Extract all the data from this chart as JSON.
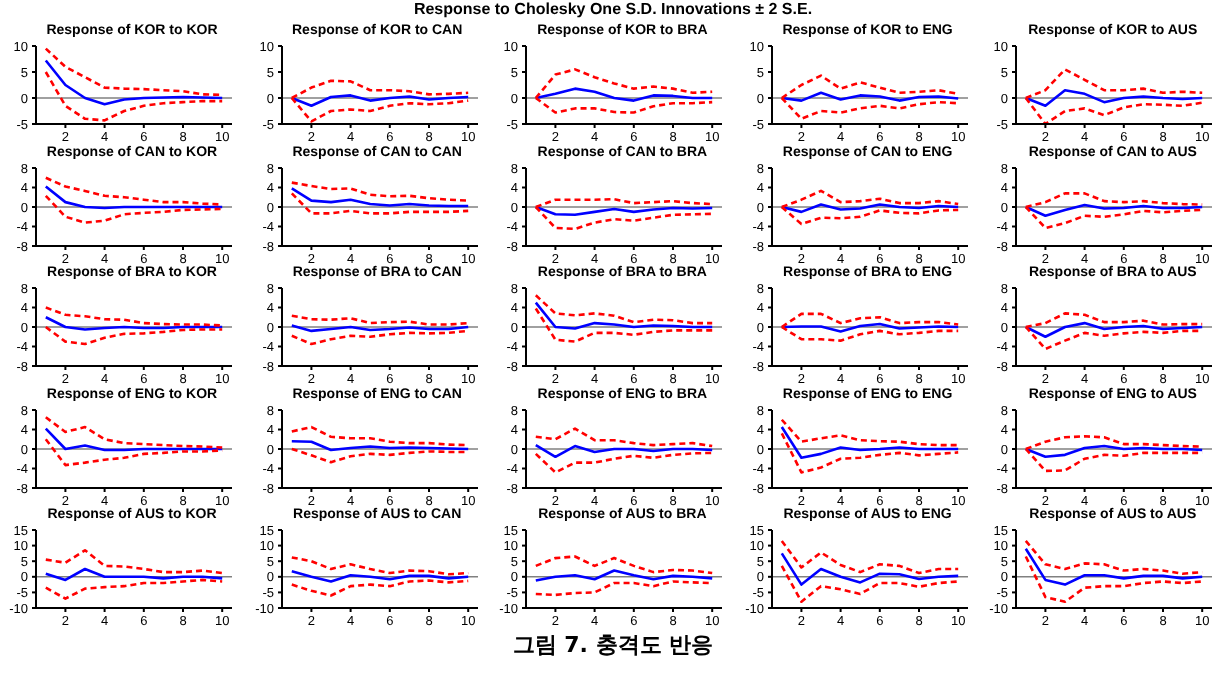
{
  "chart_data": [
    {
      "type": "other",
      "title": "Response to Cholesky One S.D. Innovations ± 2 S.E.",
      "annotations": [
        "그림 7. 충격도 반응"
      ]
    },
    {
      "type": "line",
      "title": "Response of KOR to KOR",
      "x": [
        1,
        2,
        3,
        4,
        5,
        6,
        7,
        8,
        9,
        10
      ],
      "xlim": [
        0.5,
        10.5
      ],
      "xticks": [
        2,
        4,
        6,
        8,
        10
      ],
      "ylim": [
        -5,
        10
      ],
      "yticks": [
        -5,
        0,
        5,
        10
      ],
      "ref_lines": [
        {
          "axis": "y",
          "value": 0,
          "color": "#808080"
        }
      ],
      "series": [
        {
          "color": "#0000ff",
          "values": [
            7.2,
            2.5,
            0,
            -1.2,
            -0.3,
            0,
            0.1,
            0.2,
            0.1,
            0
          ]
        },
        {
          "color": "#ff0000",
          "line_style": "dashed",
          "values": [
            9.5,
            6,
            4,
            2,
            1.8,
            1.7,
            1.5,
            1.3,
            0.7,
            0.6
          ]
        },
        {
          "color": "#ff0000",
          "line_style": "dashed",
          "values": [
            5,
            -1.5,
            -4,
            -4.3,
            -2.5,
            -1.5,
            -1,
            -0.8,
            -0.6,
            -0.6
          ]
        }
      ]
    },
    {
      "type": "line",
      "title": "Response of KOR to CAN",
      "x": [
        1,
        2,
        3,
        4,
        5,
        6,
        7,
        8,
        9,
        10
      ],
      "xlim": [
        0.5,
        10.5
      ],
      "xticks": [
        2,
        4,
        6,
        8,
        10
      ],
      "ylim": [
        -5,
        10
      ],
      "yticks": [
        -5,
        0,
        5,
        10
      ],
      "ref_lines": [
        {
          "axis": "y",
          "value": 0,
          "color": "#808080"
        }
      ],
      "series": [
        {
          "color": "#0000ff",
          "values": [
            0,
            -1.5,
            0.2,
            0.5,
            -0.5,
            0,
            0.3,
            -0.3,
            0,
            0.2
          ]
        },
        {
          "color": "#ff0000",
          "line_style": "dashed",
          "values": [
            0,
            2,
            3.3,
            3.2,
            1.5,
            1.5,
            1.3,
            0.7,
            0.8,
            1
          ]
        },
        {
          "color": "#ff0000",
          "line_style": "dashed",
          "values": [
            0,
            -4.5,
            -2.5,
            -2.2,
            -2.5,
            -1.5,
            -1,
            -1.2,
            -1,
            -0.5
          ]
        }
      ]
    },
    {
      "type": "line",
      "title": "Response of KOR to BRA",
      "x": [
        1,
        2,
        3,
        4,
        5,
        6,
        7,
        8,
        9,
        10
      ],
      "xlim": [
        0.5,
        10.5
      ],
      "xticks": [
        2,
        4,
        6,
        8,
        10
      ],
      "ylim": [
        -5,
        10
      ],
      "yticks": [
        -5,
        0,
        5,
        10
      ],
      "ref_lines": [
        {
          "axis": "y",
          "value": 0,
          "color": "#808080"
        }
      ],
      "series": [
        {
          "color": "#0000ff",
          "values": [
            0,
            0.8,
            1.8,
            1.2,
            0,
            -0.5,
            0.5,
            0.4,
            0,
            0
          ]
        },
        {
          "color": "#ff0000",
          "line_style": "dashed",
          "values": [
            0,
            4.5,
            5.5,
            4,
            2.8,
            1.8,
            2.2,
            1.8,
            1,
            1.2
          ]
        },
        {
          "color": "#ff0000",
          "line_style": "dashed",
          "values": [
            0,
            -2.8,
            -2,
            -2,
            -2.7,
            -2.8,
            -1.6,
            -1,
            -1,
            -0.8
          ]
        }
      ]
    },
    {
      "type": "line",
      "title": "Response of KOR to ENG",
      "x": [
        1,
        2,
        3,
        4,
        5,
        6,
        7,
        8,
        9,
        10
      ],
      "xlim": [
        0.5,
        10.5
      ],
      "xticks": [
        2,
        4,
        6,
        8,
        10
      ],
      "ylim": [
        -5,
        10
      ],
      "yticks": [
        -5,
        0,
        5,
        10
      ],
      "ref_lines": [
        {
          "axis": "y",
          "value": 0,
          "color": "#808080"
        }
      ],
      "series": [
        {
          "color": "#0000ff",
          "values": [
            0,
            -0.5,
            1,
            -0.3,
            0.5,
            0.3,
            -0.5,
            0.2,
            0.3,
            -0.1
          ]
        },
        {
          "color": "#ff0000",
          "line_style": "dashed",
          "values": [
            0,
            2.5,
            4.3,
            1.8,
            3,
            2,
            1,
            1.2,
            1.5,
            0.8
          ]
        },
        {
          "color": "#ff0000",
          "line_style": "dashed",
          "values": [
            0,
            -4,
            -2.5,
            -2.8,
            -2,
            -1.5,
            -2,
            -1.2,
            -0.8,
            -1
          ]
        }
      ]
    },
    {
      "type": "line",
      "title": "Response of KOR to AUS",
      "x": [
        1,
        2,
        3,
        4,
        5,
        6,
        7,
        8,
        9,
        10
      ],
      "xlim": [
        0.5,
        10.5
      ],
      "xticks": [
        2,
        4,
        6,
        8,
        10
      ],
      "ylim": [
        -5,
        10
      ],
      "yticks": [
        -5,
        0,
        5,
        10
      ],
      "ref_lines": [
        {
          "axis": "y",
          "value": 0,
          "color": "#808080"
        }
      ],
      "series": [
        {
          "color": "#0000ff",
          "values": [
            0,
            -1.5,
            1.5,
            0.8,
            -0.8,
            0,
            0.3,
            0,
            -0.2,
            0
          ]
        },
        {
          "color": "#ff0000",
          "line_style": "dashed",
          "values": [
            0,
            1.5,
            5.5,
            3.5,
            1.5,
            1.5,
            1.8,
            1,
            1.2,
            1
          ]
        },
        {
          "color": "#ff0000",
          "line_style": "dashed",
          "values": [
            0,
            -5,
            -2.5,
            -2,
            -3.3,
            -1.8,
            -1.2,
            -1.3,
            -1.5,
            -0.9
          ]
        }
      ]
    },
    {
      "type": "line",
      "title": "Response of CAN to KOR",
      "x": [
        1,
        2,
        3,
        4,
        5,
        6,
        7,
        8,
        9,
        10
      ],
      "xlim": [
        0.5,
        10.5
      ],
      "xticks": [
        2,
        4,
        6,
        8,
        10
      ],
      "ylim": [
        -8,
        8
      ],
      "yticks": [
        -8,
        -4,
        0,
        4,
        8
      ],
      "ref_lines": [
        {
          "axis": "y",
          "value": 0,
          "color": "#808080"
        }
      ],
      "series": [
        {
          "color": "#0000ff",
          "values": [
            4.2,
            1,
            0,
            -0.2,
            0,
            0,
            0,
            0,
            0,
            0
          ]
        },
        {
          "color": "#ff0000",
          "line_style": "dashed",
          "values": [
            6,
            4.2,
            3.3,
            2.3,
            2,
            1.5,
            1,
            1,
            0.7,
            0.5
          ]
        },
        {
          "color": "#ff0000",
          "line_style": "dashed",
          "values": [
            2.3,
            -2,
            -3.2,
            -2.8,
            -1.5,
            -1.2,
            -1,
            -0.6,
            -0.5,
            -0.4
          ]
        }
      ]
    },
    {
      "type": "line",
      "title": "Response of CAN to CAN",
      "x": [
        1,
        2,
        3,
        4,
        5,
        6,
        7,
        8,
        9,
        10
      ],
      "xlim": [
        0.5,
        10.5
      ],
      "xticks": [
        2,
        4,
        6,
        8,
        10
      ],
      "ylim": [
        -8,
        8
      ],
      "yticks": [
        -8,
        -4,
        0,
        4,
        8
      ],
      "ref_lines": [
        {
          "axis": "y",
          "value": 0,
          "color": "#808080"
        }
      ],
      "series": [
        {
          "color": "#0000ff",
          "values": [
            3.8,
            1.3,
            1,
            1.5,
            0.6,
            0.3,
            0.6,
            0.3,
            0.2,
            0.2
          ]
        },
        {
          "color": "#ff0000",
          "line_style": "dashed",
          "values": [
            5,
            4.3,
            3.7,
            3.8,
            2.5,
            2.2,
            2.3,
            1.8,
            1.5,
            1.3
          ]
        },
        {
          "color": "#ff0000",
          "line_style": "dashed",
          "values": [
            2.8,
            -1.3,
            -1.3,
            -0.8,
            -1.3,
            -1.3,
            -1,
            -1,
            -1,
            -0.8
          ]
        }
      ]
    },
    {
      "type": "line",
      "title": "Response of CAN to BRA",
      "x": [
        1,
        2,
        3,
        4,
        5,
        6,
        7,
        8,
        9,
        10
      ],
      "xlim": [
        0.5,
        10.5
      ],
      "xticks": [
        2,
        4,
        6,
        8,
        10
      ],
      "ylim": [
        -8,
        8
      ],
      "yticks": [
        -8,
        -4,
        0,
        4,
        8
      ],
      "ref_lines": [
        {
          "axis": "y",
          "value": 0,
          "color": "#808080"
        }
      ],
      "series": [
        {
          "color": "#0000ff",
          "values": [
            0,
            -1.5,
            -1.6,
            -1,
            -0.4,
            -1,
            -0.5,
            -0.2,
            -0.3,
            -0.2
          ]
        },
        {
          "color": "#ff0000",
          "line_style": "dashed",
          "values": [
            0,
            1.5,
            1.5,
            1.5,
            1.6,
            0.8,
            1,
            1.2,
            0.8,
            0.6
          ]
        },
        {
          "color": "#ff0000",
          "line_style": "dashed",
          "values": [
            0,
            -4.3,
            -4.5,
            -3.2,
            -2.5,
            -2.8,
            -2.2,
            -1.6,
            -1.5,
            -1.4
          ]
        }
      ]
    },
    {
      "type": "line",
      "title": "Response of CAN to ENG",
      "x": [
        1,
        2,
        3,
        4,
        5,
        6,
        7,
        8,
        9,
        10
      ],
      "xlim": [
        0.5,
        10.5
      ],
      "xticks": [
        2,
        4,
        6,
        8,
        10
      ],
      "ylim": [
        -8,
        8
      ],
      "yticks": [
        -8,
        -4,
        0,
        4,
        8
      ],
      "ref_lines": [
        {
          "axis": "y",
          "value": 0,
          "color": "#808080"
        }
      ],
      "series": [
        {
          "color": "#0000ff",
          "values": [
            0,
            -1,
            0.5,
            -0.5,
            -0.3,
            0.5,
            0,
            -0.2,
            0.2,
            0
          ]
        },
        {
          "color": "#ff0000",
          "line_style": "dashed",
          "values": [
            0,
            1.5,
            3.3,
            1,
            1.2,
            1.7,
            0.8,
            0.8,
            1.2,
            0.6
          ]
        },
        {
          "color": "#ff0000",
          "line_style": "dashed",
          "values": [
            0,
            -3.5,
            -2.2,
            -2.3,
            -2,
            -0.7,
            -1.2,
            -1.3,
            -0.7,
            -0.6
          ]
        }
      ]
    },
    {
      "type": "line",
      "title": "Response of CAN to AUS",
      "x": [
        1,
        2,
        3,
        4,
        5,
        6,
        7,
        8,
        9,
        10
      ],
      "xlim": [
        0.5,
        10.5
      ],
      "xticks": [
        2,
        4,
        6,
        8,
        10
      ],
      "ylim": [
        -8,
        8
      ],
      "yticks": [
        -8,
        -4,
        0,
        4,
        8
      ],
      "ref_lines": [
        {
          "axis": "y",
          "value": 0,
          "color": "#808080"
        }
      ],
      "series": [
        {
          "color": "#0000ff",
          "values": [
            0,
            -1.8,
            -0.6,
            0.4,
            -0.3,
            -0.2,
            0.2,
            -0.2,
            -0.2,
            0
          ]
        },
        {
          "color": "#ff0000",
          "line_style": "dashed",
          "values": [
            0,
            1,
            2.8,
            2.8,
            1.2,
            1,
            1.2,
            0.8,
            0.6,
            0.5
          ]
        },
        {
          "color": "#ff0000",
          "line_style": "dashed",
          "values": [
            0,
            -4.3,
            -3.3,
            -1.8,
            -2,
            -1.5,
            -0.8,
            -1.1,
            -0.8,
            -0.6
          ]
        }
      ]
    },
    {
      "type": "line",
      "title": "Response of BRA to KOR",
      "x": [
        1,
        2,
        3,
        4,
        5,
        6,
        7,
        8,
        9,
        10
      ],
      "xlim": [
        0.5,
        10.5
      ],
      "xticks": [
        2,
        4,
        6,
        8,
        10
      ],
      "ylim": [
        -8,
        8
      ],
      "yticks": [
        -8,
        -4,
        0,
        4,
        8
      ],
      "ref_lines": [
        {
          "axis": "y",
          "value": 0,
          "color": "#808080"
        }
      ],
      "series": [
        {
          "color": "#0000ff",
          "values": [
            2,
            0,
            -0.5,
            -0.2,
            0,
            -0.2,
            -0.2,
            0,
            0,
            0
          ]
        },
        {
          "color": "#ff0000",
          "line_style": "dashed",
          "values": [
            4,
            2.5,
            2.2,
            1.6,
            1.5,
            0.8,
            0.6,
            0.5,
            0.5,
            0.3
          ]
        },
        {
          "color": "#ff0000",
          "line_style": "dashed",
          "values": [
            0,
            -3,
            -3.5,
            -2.2,
            -1.4,
            -1.3,
            -1,
            -0.6,
            -0.5,
            -0.5
          ]
        }
      ]
    },
    {
      "type": "line",
      "title": "Response of BRA to CAN",
      "x": [
        1,
        2,
        3,
        4,
        5,
        6,
        7,
        8,
        9,
        10
      ],
      "xlim": [
        0.5,
        10.5
      ],
      "xticks": [
        2,
        4,
        6,
        8,
        10
      ],
      "ylim": [
        -8,
        8
      ],
      "yticks": [
        -8,
        -4,
        0,
        4,
        8
      ],
      "ref_lines": [
        {
          "axis": "y",
          "value": 0,
          "color": "#808080"
        }
      ],
      "series": [
        {
          "color": "#0000ff",
          "values": [
            0.3,
            -0.8,
            -0.4,
            0,
            -0.6,
            -0.4,
            -0.1,
            -0.4,
            -0.4,
            0
          ]
        },
        {
          "color": "#ff0000",
          "line_style": "dashed",
          "values": [
            2.3,
            1.6,
            1.5,
            1.8,
            0.8,
            1,
            1.1,
            0.5,
            0.5,
            0.8
          ]
        },
        {
          "color": "#ff0000",
          "line_style": "dashed",
          "values": [
            -1.8,
            -3.5,
            -2.5,
            -1.8,
            -2,
            -1.5,
            -1.2,
            -1.3,
            -1.2,
            -0.8
          ]
        }
      ]
    },
    {
      "type": "line",
      "title": "Response of BRA to BRA",
      "x": [
        1,
        2,
        3,
        4,
        5,
        6,
        7,
        8,
        9,
        10
      ],
      "xlim": [
        0.5,
        10.5
      ],
      "xticks": [
        2,
        4,
        6,
        8,
        10
      ],
      "ylim": [
        -8,
        8
      ],
      "yticks": [
        -8,
        -4,
        0,
        4,
        8
      ],
      "ref_lines": [
        {
          "axis": "y",
          "value": 0,
          "color": "#808080"
        }
      ],
      "series": [
        {
          "color": "#0000ff",
          "values": [
            5,
            0,
            -0.3,
            0.8,
            0.5,
            0,
            0.3,
            0.2,
            0,
            0
          ]
        },
        {
          "color": "#ff0000",
          "line_style": "dashed",
          "values": [
            6.5,
            2.8,
            2.4,
            2.8,
            2.3,
            1,
            1.5,
            1.4,
            0.8,
            0.8
          ]
        },
        {
          "color": "#ff0000",
          "line_style": "dashed",
          "values": [
            3.8,
            -2.6,
            -3,
            -1.2,
            -1.2,
            -1.6,
            -1,
            -0.7,
            -0.7,
            -0.7
          ]
        }
      ]
    },
    {
      "type": "line",
      "title": "Response of BRA to ENG",
      "x": [
        1,
        2,
        3,
        4,
        5,
        6,
        7,
        8,
        9,
        10
      ],
      "xlim": [
        0.5,
        10.5
      ],
      "xticks": [
        2,
        4,
        6,
        8,
        10
      ],
      "ylim": [
        -8,
        8
      ],
      "yticks": [
        -8,
        -4,
        0,
        4,
        8
      ],
      "ref_lines": [
        {
          "axis": "y",
          "value": 0,
          "color": "#808080"
        }
      ],
      "series": [
        {
          "color": "#0000ff",
          "values": [
            0,
            0.1,
            0.1,
            -0.9,
            0.2,
            0.6,
            -0.3,
            -0.1,
            0.1,
            0
          ]
        },
        {
          "color": "#ff0000",
          "line_style": "dashed",
          "values": [
            0,
            2.7,
            2.7,
            0.8,
            1.8,
            2,
            0.8,
            1,
            1,
            0.5
          ]
        },
        {
          "color": "#ff0000",
          "line_style": "dashed",
          "values": [
            0,
            -2.5,
            -2.5,
            -2.8,
            -1.5,
            -0.8,
            -1.5,
            -1.2,
            -0.8,
            -0.8
          ]
        }
      ]
    },
    {
      "type": "line",
      "title": "Response of BRA to AUS",
      "x": [
        1,
        2,
        3,
        4,
        5,
        6,
        7,
        8,
        9,
        10
      ],
      "xlim": [
        0.5,
        10.5
      ],
      "xticks": [
        2,
        4,
        6,
        8,
        10
      ],
      "ylim": [
        -8,
        8
      ],
      "yticks": [
        -8,
        -4,
        0,
        4,
        8
      ],
      "ref_lines": [
        {
          "axis": "y",
          "value": 0,
          "color": "#808080"
        }
      ],
      "series": [
        {
          "color": "#0000ff",
          "values": [
            0,
            -2,
            0,
            0.8,
            -0.4,
            0,
            0.2,
            -0.4,
            -0.2,
            0
          ]
        },
        {
          "color": "#ff0000",
          "line_style": "dashed",
          "values": [
            0,
            0.8,
            2.8,
            2.5,
            1,
            1,
            1.3,
            0.5,
            0.6,
            0.6
          ]
        },
        {
          "color": "#ff0000",
          "line_style": "dashed",
          "values": [
            0,
            -4.5,
            -2.8,
            -1.2,
            -1.8,
            -1.3,
            -1,
            -1.2,
            -0.8,
            -0.8
          ]
        }
      ]
    },
    {
      "type": "line",
      "title": "Response of ENG to KOR",
      "x": [
        1,
        2,
        3,
        4,
        5,
        6,
        7,
        8,
        9,
        10
      ],
      "xlim": [
        0.5,
        10.5
      ],
      "xticks": [
        2,
        4,
        6,
        8,
        10
      ],
      "ylim": [
        -8,
        8
      ],
      "yticks": [
        -8,
        -4,
        0,
        4,
        8
      ],
      "ref_lines": [
        {
          "axis": "y",
          "value": 0,
          "color": "#808080"
        }
      ],
      "series": [
        {
          "color": "#0000ff",
          "values": [
            4.2,
            0,
            0.7,
            -0.2,
            -0.2,
            0,
            0,
            0,
            0,
            0
          ]
        },
        {
          "color": "#ff0000",
          "line_style": "dashed",
          "values": [
            6.5,
            3.5,
            4.5,
            2,
            1.2,
            1,
            0.8,
            0.6,
            0.5,
            0.3
          ]
        },
        {
          "color": "#ff0000",
          "line_style": "dashed",
          "values": [
            2,
            -3.3,
            -2.8,
            -2.2,
            -1.8,
            -1,
            -0.8,
            -0.5,
            -0.5,
            -0.3
          ]
        }
      ]
    },
    {
      "type": "line",
      "title": "Response of ENG to CAN",
      "x": [
        1,
        2,
        3,
        4,
        5,
        6,
        7,
        8,
        9,
        10
      ],
      "xlim": [
        0.5,
        10.5
      ],
      "xticks": [
        2,
        4,
        6,
        8,
        10
      ],
      "ylim": [
        -8,
        8
      ],
      "yticks": [
        -8,
        -4,
        0,
        4,
        8
      ],
      "ref_lines": [
        {
          "axis": "y",
          "value": 0,
          "color": "#808080"
        }
      ],
      "series": [
        {
          "color": "#0000ff",
          "values": [
            1.6,
            1.5,
            -0.2,
            0.2,
            0.5,
            0.2,
            0.3,
            0.2,
            0.1,
            0
          ]
        },
        {
          "color": "#ff0000",
          "line_style": "dashed",
          "values": [
            3.6,
            4.5,
            2.5,
            2.2,
            2.2,
            1.5,
            1.2,
            1.2,
            0.9,
            0.8
          ]
        },
        {
          "color": "#ff0000",
          "line_style": "dashed",
          "values": [
            0,
            -1.3,
            -2.7,
            -1.5,
            -1,
            -1.2,
            -0.8,
            -0.5,
            -0.6,
            -0.6
          ]
        }
      ]
    },
    {
      "type": "line",
      "title": "Response of ENG to BRA",
      "x": [
        1,
        2,
        3,
        4,
        5,
        6,
        7,
        8,
        9,
        10
      ],
      "xlim": [
        0.5,
        10.5
      ],
      "xticks": [
        2,
        4,
        6,
        8,
        10
      ],
      "ylim": [
        -8,
        8
      ],
      "yticks": [
        -8,
        -4,
        0,
        4,
        8
      ],
      "ref_lines": [
        {
          "axis": "y",
          "value": 0,
          "color": "#808080"
        }
      ],
      "series": [
        {
          "color": "#0000ff",
          "values": [
            0.8,
            -1.6,
            0.6,
            -0.6,
            0,
            0,
            -0.4,
            0,
            0,
            -0.2
          ]
        },
        {
          "color": "#ff0000",
          "line_style": "dashed",
          "values": [
            2.5,
            2,
            4.2,
            1.8,
            1.8,
            1.2,
            0.8,
            1,
            1.2,
            0.6
          ]
        },
        {
          "color": "#ff0000",
          "line_style": "dashed",
          "values": [
            -1,
            -4.8,
            -2.8,
            -2.8,
            -2,
            -1.4,
            -1.8,
            -1.2,
            -0.9,
            -0.8
          ]
        }
      ]
    },
    {
      "type": "line",
      "title": "Response of ENG to ENG",
      "x": [
        1,
        2,
        3,
        4,
        5,
        6,
        7,
        8,
        9,
        10
      ],
      "xlim": [
        0.5,
        10.5
      ],
      "xticks": [
        2,
        4,
        6,
        8,
        10
      ],
      "ylim": [
        -8,
        8
      ],
      "yticks": [
        -8,
        -4,
        0,
        4,
        8
      ],
      "ref_lines": [
        {
          "axis": "y",
          "value": 0,
          "color": "#808080"
        }
      ],
      "series": [
        {
          "color": "#0000ff",
          "values": [
            4.5,
            -1.8,
            -1,
            0.3,
            -0.2,
            0,
            0.3,
            0,
            0,
            0
          ]
        },
        {
          "color": "#ff0000",
          "line_style": "dashed",
          "values": [
            6,
            1.5,
            2.2,
            2.8,
            1.8,
            1.6,
            1.5,
            1,
            0.8,
            0.8
          ]
        },
        {
          "color": "#ff0000",
          "line_style": "dashed",
          "values": [
            3.2,
            -4.8,
            -3.8,
            -2,
            -1.8,
            -1.2,
            -0.8,
            -1.3,
            -1,
            -0.7
          ]
        }
      ]
    },
    {
      "type": "line",
      "title": "Response of ENG to AUS",
      "x": [
        1,
        2,
        3,
        4,
        5,
        6,
        7,
        8,
        9,
        10
      ],
      "xlim": [
        0.5,
        10.5
      ],
      "xticks": [
        2,
        4,
        6,
        8,
        10
      ],
      "ylim": [
        -8,
        8
      ],
      "yticks": [
        -8,
        -4,
        0,
        4,
        8
      ],
      "ref_lines": [
        {
          "axis": "y",
          "value": 0,
          "color": "#808080"
        }
      ],
      "series": [
        {
          "color": "#0000ff",
          "values": [
            0,
            -1.6,
            -1.2,
            0.2,
            0.6,
            0,
            0.2,
            0,
            0,
            -0.2
          ]
        },
        {
          "color": "#ff0000",
          "line_style": "dashed",
          "values": [
            0,
            1.5,
            2.4,
            2.6,
            2.4,
            1,
            1,
            0.8,
            0.6,
            0.5
          ]
        },
        {
          "color": "#ff0000",
          "line_style": "dashed",
          "values": [
            0,
            -4.5,
            -4.4,
            -2,
            -1.2,
            -1.4,
            -0.8,
            -0.8,
            -0.8,
            -0.8
          ]
        }
      ]
    },
    {
      "type": "line",
      "title": "Response of AUS to KOR",
      "x": [
        1,
        2,
        3,
        4,
        5,
        6,
        7,
        8,
        9,
        10
      ],
      "xlim": [
        0.5,
        10.5
      ],
      "xticks": [
        2,
        4,
        6,
        8,
        10
      ],
      "ylim": [
        -10,
        15
      ],
      "yticks": [
        -10,
        -5,
        0,
        5,
        10,
        15
      ],
      "ref_lines": [
        {
          "axis": "y",
          "value": 0,
          "color": "#808080"
        }
      ],
      "series": [
        {
          "color": "#0000ff",
          "values": [
            1,
            -1,
            2.5,
            0,
            0,
            0,
            -0.5,
            0,
            0,
            -0.5
          ]
        },
        {
          "color": "#ff0000",
          "line_style": "dashed",
          "values": [
            5.5,
            4.5,
            8.5,
            3.5,
            3.3,
            2.5,
            1.5,
            1.5,
            2,
            1.2
          ]
        },
        {
          "color": "#ff0000",
          "line_style": "dashed",
          "values": [
            -3.5,
            -7,
            -3.8,
            -3.3,
            -3,
            -2,
            -2,
            -1.5,
            -1,
            -1.5
          ]
        }
      ]
    },
    {
      "type": "line",
      "title": "Response of AUS to CAN",
      "x": [
        1,
        2,
        3,
        4,
        5,
        6,
        7,
        8,
        9,
        10
      ],
      "xlim": [
        0.5,
        10.5
      ],
      "xticks": [
        2,
        4,
        6,
        8,
        10
      ],
      "ylim": [
        -10,
        15
      ],
      "yticks": [
        -10,
        -5,
        0,
        5,
        10,
        15
      ],
      "ref_lines": [
        {
          "axis": "y",
          "value": 0,
          "color": "#808080"
        }
      ],
      "series": [
        {
          "color": "#0000ff",
          "values": [
            1.8,
            0,
            -1.5,
            0.5,
            0,
            -0.8,
            0.3,
            0.3,
            -0.5,
            0
          ]
        },
        {
          "color": "#ff0000",
          "line_style": "dashed",
          "values": [
            6.2,
            5,
            2.5,
            4,
            2.5,
            1.2,
            2,
            1.8,
            0.8,
            1.2
          ]
        },
        {
          "color": "#ff0000",
          "line_style": "dashed",
          "values": [
            -2.5,
            -4.5,
            -6,
            -3,
            -2.5,
            -3,
            -1.5,
            -1.2,
            -1.8,
            -1.3
          ]
        }
      ]
    },
    {
      "type": "line",
      "title": "Response of AUS to BRA",
      "x": [
        1,
        2,
        3,
        4,
        5,
        6,
        7,
        8,
        9,
        10
      ],
      "xlim": [
        0.5,
        10.5
      ],
      "xticks": [
        2,
        4,
        6,
        8,
        10
      ],
      "ylim": [
        -10,
        15
      ],
      "yticks": [
        -10,
        -5,
        0,
        5,
        10,
        15
      ],
      "ref_lines": [
        {
          "axis": "y",
          "value": 0,
          "color": "#808080"
        }
      ],
      "series": [
        {
          "color": "#0000ff",
          "values": [
            -1.2,
            0,
            0.5,
            -0.8,
            2,
            0.5,
            -0.8,
            0.3,
            0,
            -0.5
          ]
        },
        {
          "color": "#ff0000",
          "line_style": "dashed",
          "values": [
            3.5,
            6,
            6.5,
            3.5,
            6,
            3.5,
            1.5,
            2.2,
            2,
            1.2
          ]
        },
        {
          "color": "#ff0000",
          "line_style": "dashed",
          "values": [
            -5.5,
            -5.8,
            -5.2,
            -5,
            -2,
            -2,
            -3,
            -1.5,
            -1.8,
            -2
          ]
        }
      ]
    },
    {
      "type": "line",
      "title": "Response of AUS to ENG",
      "x": [
        1,
        2,
        3,
        4,
        5,
        6,
        7,
        8,
        9,
        10
      ],
      "xlim": [
        0.5,
        10.5
      ],
      "xticks": [
        2,
        4,
        6,
        8,
        10
      ],
      "ylim": [
        -10,
        15
      ],
      "yticks": [
        -10,
        -5,
        0,
        5,
        10,
        15
      ],
      "ref_lines": [
        {
          "axis": "y",
          "value": 0,
          "color": "#808080"
        }
      ],
      "series": [
        {
          "color": "#0000ff",
          "values": [
            7.5,
            -2.5,
            2.5,
            0,
            -1.8,
            1,
            0.8,
            -0.7,
            0,
            0.3
          ]
        },
        {
          "color": "#ff0000",
          "line_style": "dashed",
          "values": [
            11.5,
            3,
            7.8,
            3.8,
            1.5,
            4,
            3.5,
            1.2,
            2.5,
            2.5
          ]
        },
        {
          "color": "#ff0000",
          "line_style": "dashed",
          "values": [
            3.5,
            -8,
            -3,
            -4,
            -5.5,
            -2,
            -2,
            -3.2,
            -2,
            -1.5
          ]
        }
      ]
    },
    {
      "type": "line",
      "title": "Response of AUS to AUS",
      "x": [
        1,
        2,
        3,
        4,
        5,
        6,
        7,
        8,
        9,
        10
      ],
      "xlim": [
        0.5,
        10.5
      ],
      "xticks": [
        2,
        4,
        6,
        8,
        10
      ],
      "ylim": [
        -10,
        15
      ],
      "yticks": [
        -10,
        -5,
        0,
        5,
        10,
        15
      ],
      "ref_lines": [
        {
          "axis": "y",
          "value": 0,
          "color": "#808080"
        }
      ],
      "series": [
        {
          "color": "#0000ff",
          "values": [
            9,
            -1,
            -2.5,
            0.5,
            0.5,
            -0.5,
            0.3,
            0.3,
            -0.5,
            0
          ]
        },
        {
          "color": "#ff0000",
          "line_style": "dashed",
          "values": [
            11.5,
            4,
            2.5,
            4.3,
            4,
            2,
            2.5,
            2,
            1,
            1.5
          ]
        },
        {
          "color": "#ff0000",
          "line_style": "dashed",
          "values": [
            6.5,
            -6.5,
            -8,
            -3.5,
            -3,
            -3,
            -2,
            -1.5,
            -2,
            -1.5
          ]
        }
      ]
    }
  ]
}
